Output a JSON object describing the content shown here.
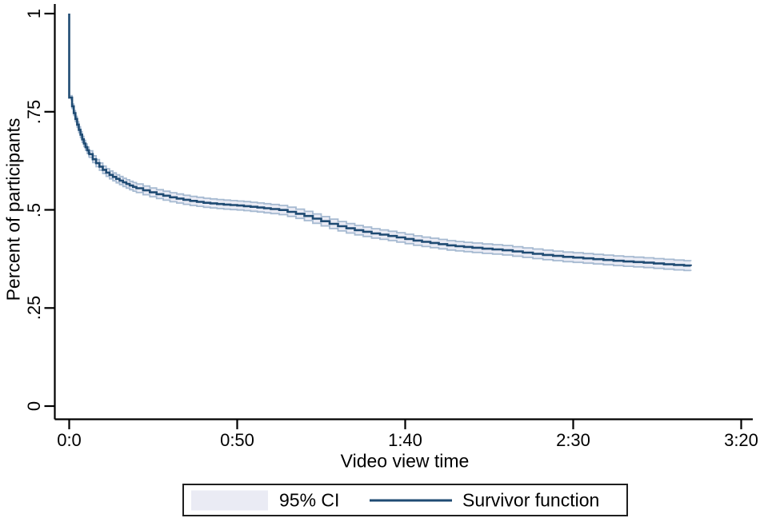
{
  "chart_data": {
    "type": "line",
    "subtype": "kaplan-meier-survival",
    "title": "",
    "xlabel": "Video view time",
    "ylabel": "Percent of participants",
    "xlim_seconds": [
      0,
      200
    ],
    "ylim": [
      0,
      1
    ],
    "grid": false,
    "legend_position": "bottom",
    "xticks": [
      {
        "seconds": 0,
        "label": "0:0"
      },
      {
        "seconds": 50,
        "label": "0:50"
      },
      {
        "seconds": 100,
        "label": "1:40"
      },
      {
        "seconds": 150,
        "label": "2:30"
      },
      {
        "seconds": 200,
        "label": "3:20"
      }
    ],
    "yticks": [
      {
        "value": 0,
        "label": "0"
      },
      {
        "value": 0.25,
        "label": ".25"
      },
      {
        "value": 0.5,
        "label": ".5"
      },
      {
        "value": 0.75,
        "label": ".75"
      },
      {
        "value": 1,
        "label": "1"
      }
    ],
    "series": [
      {
        "name": "Survivor function",
        "type": "step",
        "color": "#1f4b73",
        "start_point": [
          0,
          1.0
        ],
        "end_seconds": 185,
        "points": [
          [
            0.35,
            0.786
          ],
          [
            1,
            0.757
          ],
          [
            1.5,
            0.742
          ],
          [
            2,
            0.727
          ],
          [
            2.5,
            0.713
          ],
          [
            3,
            0.7
          ],
          [
            3.5,
            0.688
          ],
          [
            4,
            0.676
          ],
          [
            4.5,
            0.666
          ],
          [
            5,
            0.657
          ],
          [
            6,
            0.642
          ],
          [
            7,
            0.629
          ],
          [
            8,
            0.619
          ],
          [
            9,
            0.61
          ],
          [
            10,
            0.602
          ],
          [
            11,
            0.595
          ],
          [
            12,
            0.589
          ],
          [
            13,
            0.584
          ],
          [
            14,
            0.579
          ],
          [
            16,
            0.57
          ],
          [
            18,
            0.562
          ],
          [
            20,
            0.555
          ],
          [
            23,
            0.547
          ],
          [
            26,
            0.54
          ],
          [
            30,
            0.532
          ],
          [
            35,
            0.524
          ],
          [
            40,
            0.518
          ],
          [
            45,
            0.514
          ],
          [
            50,
            0.511
          ],
          [
            55,
            0.507
          ],
          [
            60,
            0.502
          ],
          [
            63,
            0.499
          ],
          [
            66,
            0.493
          ],
          [
            69,
            0.487
          ],
          [
            72,
            0.479
          ],
          [
            75,
            0.471
          ],
          [
            78,
            0.463
          ],
          [
            81,
            0.456
          ],
          [
            84,
            0.45
          ],
          [
            87,
            0.445
          ],
          [
            90,
            0.44
          ],
          [
            94,
            0.435
          ],
          [
            98,
            0.429
          ],
          [
            103,
            0.421
          ],
          [
            108,
            0.415
          ],
          [
            113,
            0.409
          ],
          [
            118,
            0.405
          ],
          [
            123,
            0.401
          ],
          [
            128,
            0.398
          ],
          [
            134,
            0.392
          ],
          [
            140,
            0.386
          ],
          [
            146,
            0.381
          ],
          [
            152,
            0.377
          ],
          [
            158,
            0.373
          ],
          [
            164,
            0.369
          ],
          [
            170,
            0.366
          ],
          [
            176,
            0.362
          ],
          [
            181,
            0.359
          ],
          [
            185,
            0.357
          ]
        ]
      },
      {
        "name": "95% CI",
        "type": "band",
        "fill": "#eaebf4",
        "edge": "#a6bad1",
        "delta_points": [
          [
            0.35,
            0.005
          ],
          [
            1,
            0.006
          ],
          [
            2,
            0.007
          ],
          [
            3,
            0.0075
          ],
          [
            5,
            0.008
          ],
          [
            8,
            0.009
          ],
          [
            12,
            0.01
          ],
          [
            20,
            0.011
          ],
          [
            30,
            0.0115
          ],
          [
            50,
            0.0115
          ],
          [
            80,
            0.012
          ],
          [
            120,
            0.012
          ],
          [
            185,
            0.0125
          ]
        ]
      }
    ],
    "axis_color": "#000000"
  },
  "legend": {
    "ci_label": "95% CI",
    "survivor_label": "Survivor function"
  }
}
